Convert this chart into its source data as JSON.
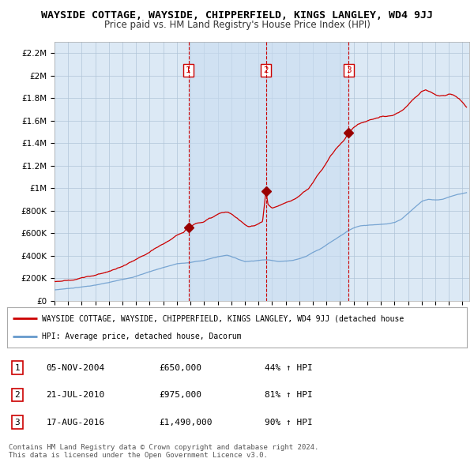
{
  "title": "WAYSIDE COTTAGE, WAYSIDE, CHIPPERFIELD, KINGS LANGLEY, WD4 9JJ",
  "subtitle": "Price paid vs. HM Land Registry's House Price Index (HPI)",
  "title_fontsize": 9.5,
  "subtitle_fontsize": 8.5,
  "background_color": "#ffffff",
  "plot_bg_color": "#dce9f5",
  "grid_color": "#b0c4d8",
  "ylim": [
    0,
    2300000
  ],
  "yticks": [
    0,
    200000,
    400000,
    600000,
    800000,
    1000000,
    1200000,
    1400000,
    1600000,
    1800000,
    2000000,
    2200000
  ],
  "ytick_labels": [
    "£0",
    "£200K",
    "£400K",
    "£600K",
    "£800K",
    "£1M",
    "£1.2M",
    "£1.4M",
    "£1.6M",
    "£1.8M",
    "£2M",
    "£2.2M"
  ],
  "sale_dates": [
    2004.85,
    2010.55,
    2016.63
  ],
  "sale_prices": [
    650000,
    975000,
    1490000
  ],
  "sale_labels": [
    "1",
    "2",
    "3"
  ],
  "sale_label_color": "#cc0000",
  "sale_marker_color": "#990000",
  "hpi_line_color": "#6699cc",
  "price_line_color": "#cc0000",
  "vline_color": "#cc0000",
  "vspan_color": "#c8dcf0",
  "legend_label_red": "WAYSIDE COTTAGE, WAYSIDE, CHIPPERFIELD, KINGS LANGLEY, WD4 9JJ (detached house",
  "legend_label_blue": "HPI: Average price, detached house, Dacorum",
  "table_rows": [
    [
      "1",
      "05-NOV-2004",
      "£650,000",
      "44% ↑ HPI"
    ],
    [
      "2",
      "21-JUL-2010",
      "£975,000",
      "81% ↑ HPI"
    ],
    [
      "3",
      "17-AUG-2016",
      "£1,490,000",
      "90% ↑ HPI"
    ]
  ],
  "footer_text": "Contains HM Land Registry data © Crown copyright and database right 2024.\nThis data is licensed under the Open Government Licence v3.0.",
  "xstart": 1995.0,
  "xend": 2025.5
}
